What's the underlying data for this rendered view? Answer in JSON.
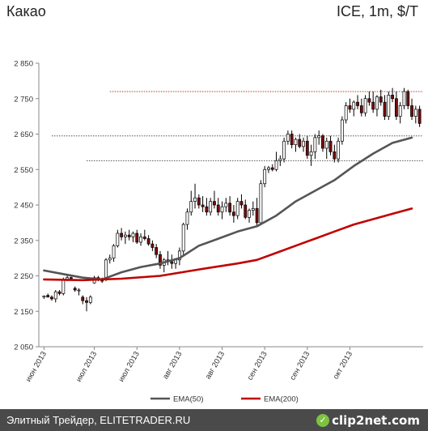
{
  "header": {
    "title": "Какао",
    "instrument": "ICE, 1m, $/T"
  },
  "footer": {
    "source": "Элитный Трейдер, ELITETRADER.RU",
    "logo": "clip2net.com"
  },
  "colors": {
    "candle_up": "#ffffff",
    "candle_down": "#7a0a0a",
    "candle_outline": "#000000",
    "ema50": "#555555",
    "ema200": "#c00000",
    "resistance_line": "#c03030",
    "support_line": "#555555"
  },
  "chart_data": {
    "type": "line",
    "title": "",
    "xlabel": "",
    "ylabel": "",
    "ylim": [
      2050,
      2850
    ],
    "yticks": [
      "2 050",
      "2 150",
      "2 250",
      "2 350",
      "2 450",
      "2 550",
      "2 650",
      "2 750",
      "2 850"
    ],
    "ytick_values": [
      2050,
      2150,
      2250,
      2350,
      2450,
      2550,
      2650,
      2750,
      2850
    ],
    "xticks": [
      "июн 2013",
      "июл 2013",
      "июл 2013",
      "авг 2013",
      "авг 2013",
      "сен 2013",
      "сен 2013",
      "окт 2013"
    ],
    "xtick_positions": [
      0,
      13,
      24,
      35,
      46,
      57,
      68,
      79
    ],
    "x_count": 98,
    "grid": false,
    "legend": {
      "position": "bottom",
      "entries": [
        "EMA(50)",
        "EMA(200)"
      ]
    },
    "candles": [
      [
        2190,
        2195,
        2185,
        2193
      ],
      [
        2195,
        2200,
        2190,
        2190
      ],
      [
        2190,
        2195,
        2180,
        2185
      ],
      [
        2185,
        2210,
        2175,
        2205
      ],
      [
        2205,
        2210,
        2195,
        2200
      ],
      [
        2200,
        2245,
        2195,
        2240
      ],
      [
        2240,
        2250,
        2235,
        2245
      ],
      [
        2245,
        2248,
        2238,
        2242
      ],
      [
        2215,
        2220,
        2205,
        2210
      ],
      [
        2210,
        2215,
        2195,
        2210
      ],
      [
        2190,
        2195,
        2170,
        2180
      ],
      [
        2180,
        2190,
        2150,
        2175
      ],
      [
        2175,
        2195,
        2170,
        2190
      ],
      [
        2230,
        2250,
        2228,
        2245
      ],
      [
        2245,
        2250,
        2235,
        2240
      ],
      [
        2240,
        2245,
        2230,
        2235
      ],
      [
        2240,
        2300,
        2235,
        2295
      ],
      [
        2295,
        2310,
        2285,
        2300
      ],
      [
        2300,
        2340,
        2290,
        2335
      ],
      [
        2335,
        2380,
        2330,
        2370
      ],
      [
        2370,
        2385,
        2350,
        2360
      ],
      [
        2360,
        2375,
        2340,
        2365
      ],
      [
        2365,
        2380,
        2350,
        2360
      ],
      [
        2360,
        2375,
        2345,
        2370
      ],
      [
        2370,
        2380,
        2340,
        2345
      ],
      [
        2345,
        2370,
        2335,
        2360
      ],
      [
        2360,
        2380,
        2350,
        2355
      ],
      [
        2355,
        2365,
        2335,
        2340
      ],
      [
        2340,
        2350,
        2320,
        2330
      ],
      [
        2330,
        2340,
        2300,
        2310
      ],
      [
        2310,
        2320,
        2270,
        2280
      ],
      [
        2280,
        2300,
        2260,
        2295
      ],
      [
        2295,
        2320,
        2280,
        2290
      ],
      [
        2290,
        2310,
        2270,
        2285
      ],
      [
        2285,
        2300,
        2270,
        2295
      ],
      [
        2295,
        2330,
        2280,
        2320
      ],
      [
        2320,
        2400,
        2310,
        2395
      ],
      [
        2395,
        2440,
        2380,
        2430
      ],
      [
        2430,
        2490,
        2420,
        2460
      ],
      [
        2460,
        2510,
        2440,
        2470
      ],
      [
        2470,
        2480,
        2440,
        2450
      ],
      [
        2450,
        2475,
        2430,
        2445
      ],
      [
        2445,
        2470,
        2420,
        2430
      ],
      [
        2430,
        2470,
        2420,
        2460
      ],
      [
        2460,
        2490,
        2440,
        2450
      ],
      [
        2450,
        2470,
        2420,
        2430
      ],
      [
        2430,
        2460,
        2410,
        2445
      ],
      [
        2445,
        2470,
        2430,
        2455
      ],
      [
        2455,
        2475,
        2420,
        2430
      ],
      [
        2430,
        2450,
        2400,
        2420
      ],
      [
        2420,
        2470,
        2410,
        2460
      ],
      [
        2460,
        2480,
        2440,
        2450
      ],
      [
        2450,
        2465,
        2410,
        2415
      ],
      [
        2415,
        2440,
        2400,
        2435
      ],
      [
        2435,
        2460,
        2420,
        2440
      ],
      [
        2440,
        2470,
        2390,
        2400
      ],
      [
        2400,
        2520,
        2395,
        2510
      ],
      [
        2510,
        2560,
        2500,
        2550
      ],
      [
        2550,
        2560,
        2540,
        2555
      ],
      [
        2555,
        2565,
        2545,
        2550
      ],
      [
        2550,
        2600,
        2545,
        2575
      ],
      [
        2575,
        2590,
        2560,
        2580
      ],
      [
        2580,
        2640,
        2570,
        2630
      ],
      [
        2630,
        2660,
        2620,
        2650
      ],
      [
        2650,
        2660,
        2610,
        2620
      ],
      [
        2620,
        2640,
        2600,
        2635
      ],
      [
        2635,
        2650,
        2610,
        2615
      ],
      [
        2615,
        2640,
        2600,
        2630
      ],
      [
        2630,
        2645,
        2580,
        2590
      ],
      [
        2590,
        2620,
        2560,
        2600
      ],
      [
        2600,
        2650,
        2580,
        2640
      ],
      [
        2640,
        2660,
        2620,
        2645
      ],
      [
        2645,
        2650,
        2600,
        2610
      ],
      [
        2610,
        2640,
        2580,
        2630
      ],
      [
        2630,
        2645,
        2590,
        2600
      ],
      [
        2600,
        2620,
        2570,
        2580
      ],
      [
        2580,
        2640,
        2570,
        2630
      ],
      [
        2630,
        2700,
        2620,
        2690
      ],
      [
        2690,
        2740,
        2680,
        2730
      ],
      [
        2730,
        2750,
        2710,
        2720
      ],
      [
        2720,
        2745,
        2700,
        2740
      ],
      [
        2740,
        2760,
        2720,
        2730
      ],
      [
        2730,
        2750,
        2700,
        2710
      ],
      [
        2710,
        2760,
        2700,
        2750
      ],
      [
        2750,
        2770,
        2730,
        2740
      ],
      [
        2740,
        2770,
        2710,
        2720
      ],
      [
        2720,
        2760,
        2700,
        2755
      ],
      [
        2755,
        2775,
        2730,
        2740
      ],
      [
        2740,
        2760,
        2690,
        2700
      ],
      [
        2700,
        2770,
        2690,
        2760
      ],
      [
        2760,
        2780,
        2740,
        2750
      ],
      [
        2750,
        2770,
        2690,
        2700
      ],
      [
        2700,
        2740,
        2680,
        2730
      ],
      [
        2730,
        2780,
        2720,
        2770
      ],
      [
        2770,
        2775,
        2720,
        2730
      ],
      [
        2730,
        2750,
        2690,
        2700
      ],
      [
        2700,
        2730,
        2680,
        2720
      ],
      [
        2720,
        2730,
        2670,
        2680
      ]
    ],
    "series": [
      {
        "name": "EMA(50)",
        "points": [
          [
            0,
            2265
          ],
          [
            5,
            2255
          ],
          [
            10,
            2245
          ],
          [
            15,
            2240
          ],
          [
            20,
            2260
          ],
          [
            25,
            2275
          ],
          [
            30,
            2285
          ],
          [
            35,
            2300
          ],
          [
            40,
            2335
          ],
          [
            45,
            2355
          ],
          [
            50,
            2375
          ],
          [
            55,
            2390
          ],
          [
            60,
            2420
          ],
          [
            65,
            2460
          ],
          [
            70,
            2490
          ],
          [
            75,
            2520
          ],
          [
            80,
            2560
          ],
          [
            85,
            2595
          ],
          [
            90,
            2625
          ],
          [
            95,
            2640
          ]
        ]
      },
      {
        "name": "EMA(200)",
        "points": [
          [
            0,
            2240
          ],
          [
            10,
            2238
          ],
          [
            20,
            2242
          ],
          [
            30,
            2250
          ],
          [
            40,
            2268
          ],
          [
            50,
            2285
          ],
          [
            55,
            2295
          ],
          [
            60,
            2315
          ],
          [
            65,
            2335
          ],
          [
            70,
            2355
          ],
          [
            75,
            2375
          ],
          [
            80,
            2395
          ],
          [
            85,
            2410
          ],
          [
            90,
            2425
          ],
          [
            95,
            2440
          ]
        ]
      }
    ],
    "hlines": [
      {
        "y": 2770,
        "x_from": 17,
        "x_to": 98,
        "style": "resistance"
      },
      {
        "y": 2645,
        "x_from": 2,
        "x_to": 98,
        "style": "support"
      },
      {
        "y": 2575,
        "x_from": 11,
        "x_to": 98,
        "style": "support"
      }
    ]
  }
}
